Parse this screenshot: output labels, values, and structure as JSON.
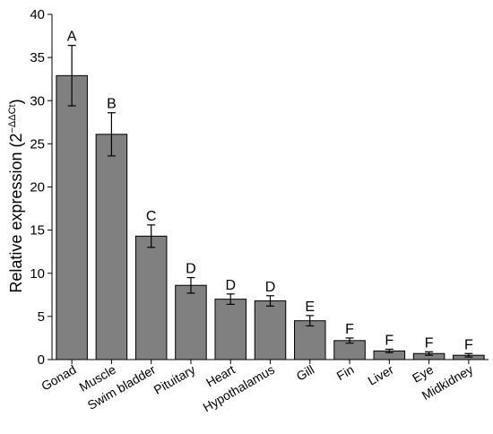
{
  "chart_data": {
    "type": "bar",
    "title": "",
    "xlabel": "",
    "ylabel": "Relative expression (2",
    "ylabel_exponent": "−ΔΔCt",
    "ylabel_close": ")",
    "ylim": [
      0,
      40
    ],
    "yticks": [
      0,
      5,
      10,
      15,
      20,
      25,
      30,
      35,
      40
    ],
    "categories": [
      "Gonad",
      "Muscle",
      "Swim bladder",
      "Pituitary",
      "Heart",
      "Hypothalamus",
      "Gill",
      "Fin",
      "Liver",
      "Eye",
      "Midkidney"
    ],
    "values": [
      32.9,
      26.1,
      14.3,
      8.6,
      7.0,
      6.8,
      4.5,
      2.2,
      1.0,
      0.7,
      0.5
    ],
    "errors": [
      3.5,
      2.5,
      1.3,
      0.9,
      0.6,
      0.6,
      0.6,
      0.3,
      0.2,
      0.2,
      0.2
    ],
    "significance": [
      "A",
      "B",
      "C",
      "D",
      "D",
      "D",
      "E",
      "F",
      "F",
      "F",
      "F"
    ],
    "bar_color": "#808080",
    "grid": false,
    "legend": "none"
  }
}
